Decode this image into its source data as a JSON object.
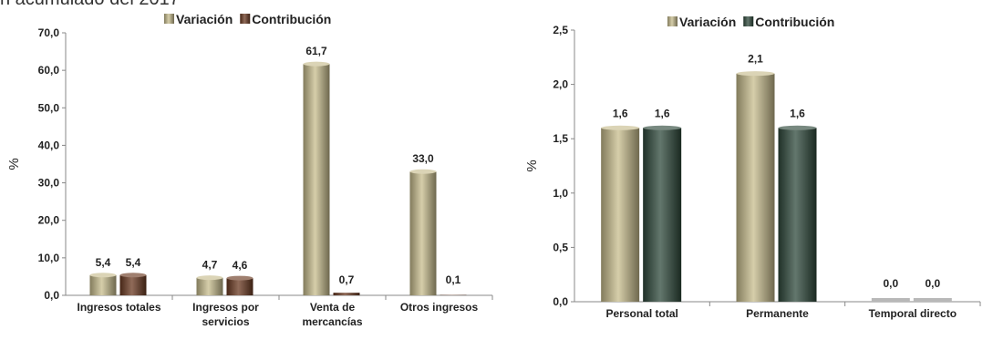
{
  "top_fragment": "n acumulado del 2017",
  "chart_data": [
    {
      "type": "bar",
      "categories": [
        "Ingresos totales",
        "Ingresos por servicios",
        "Venta de mercancías",
        "Otros ingresos"
      ],
      "category_lines": [
        [
          "Ingresos totales"
        ],
        [
          "Ingresos por",
          "servicios"
        ],
        [
          "Venta de",
          "mercancías"
        ],
        [
          "Otros ingresos"
        ]
      ],
      "series": [
        {
          "name": "Variación",
          "values": [
            5.4,
            4.7,
            61.7,
            33.0
          ],
          "labels": [
            "5,4",
            "4,7",
            "61,7",
            "33,0"
          ],
          "color": "#c8bd8e"
        },
        {
          "name": "Contribución",
          "values": [
            5.4,
            4.6,
            0.7,
            0.1
          ],
          "labels": [
            "5,4",
            "4,6",
            "0,7",
            "0,1"
          ],
          "color": "#6b3a22"
        }
      ],
      "ylabel": "%",
      "ylim": [
        0,
        70
      ],
      "yticks": [
        "0,0",
        "10,0",
        "20,0",
        "30,0",
        "40,0",
        "50,0",
        "60,0",
        "70,0"
      ],
      "legend_position": "top"
    },
    {
      "type": "bar",
      "categories": [
        "Personal total",
        "Permanente",
        "Temporal directo"
      ],
      "category_lines": [
        [
          "Personal total"
        ],
        [
          "Permanente"
        ],
        [
          "Temporal directo"
        ]
      ],
      "series": [
        {
          "name": "Variación",
          "values": [
            1.6,
            2.1,
            0.0
          ],
          "labels": [
            "1,6",
            "2,1",
            "0,0"
          ],
          "color": "#c8bd8e"
        },
        {
          "name": "Contribución",
          "values": [
            1.6,
            1.6,
            0.0
          ],
          "labels": [
            "1,6",
            "1,6",
            "0,0"
          ],
          "color": "#2f4a3c"
        }
      ],
      "ylabel": "%",
      "ylim": [
        0,
        2.5
      ],
      "yticks": [
        "0,0",
        "0,5",
        "1,0",
        "1,5",
        "2,0",
        "2,5"
      ],
      "legend_position": "top"
    }
  ]
}
